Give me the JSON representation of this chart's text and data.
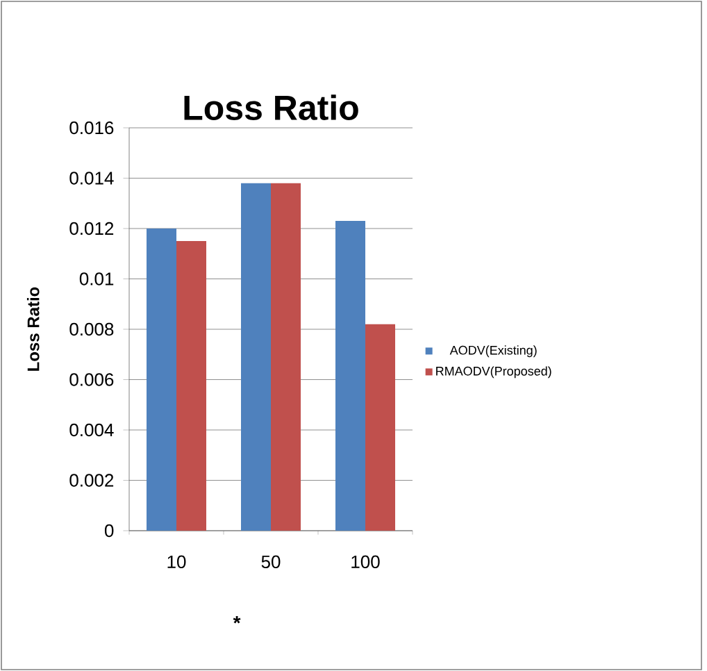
{
  "chart_data": {
    "type": "bar",
    "title": "Loss Ratio",
    "xlabel": "*",
    "ylabel": "Loss Ratio",
    "categories": [
      "10",
      "50",
      "100"
    ],
    "series": [
      {
        "name": "AODV(Existing)",
        "color": "#4f81bd",
        "values": [
          0.012,
          0.0138,
          0.0123
        ]
      },
      {
        "name": "RMAODV(Proposed)",
        "color": "#c0504d",
        "values": [
          0.0115,
          0.0138,
          0.0082
        ]
      }
    ],
    "ylim": [
      0,
      0.016
    ],
    "yticks": [
      0,
      0.002,
      0.004,
      0.006,
      0.008,
      0.01,
      0.012,
      0.014,
      0.016
    ],
    "grid": "y",
    "legend": "right"
  }
}
